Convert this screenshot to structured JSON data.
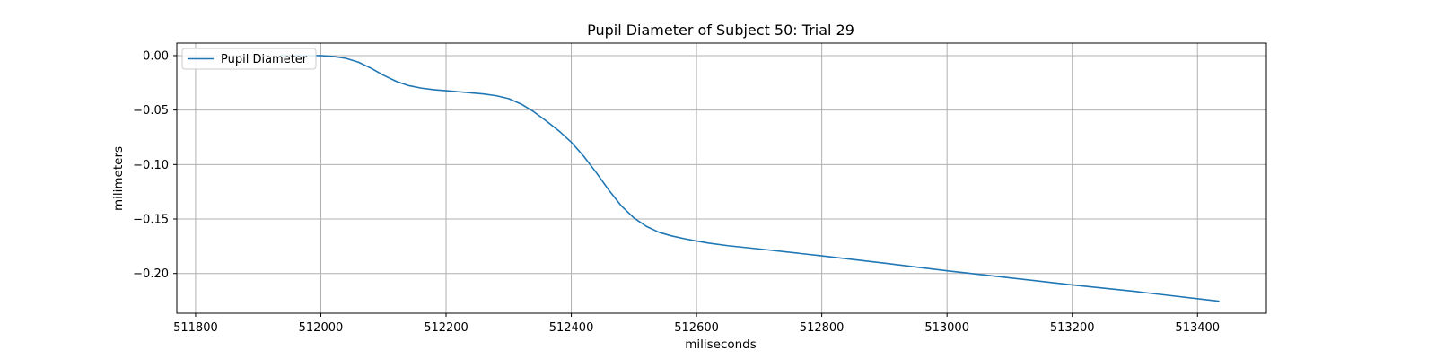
{
  "chart_data": {
    "type": "line",
    "title": "Pupil Diameter of Subject 50: Trial 29",
    "xlabel": "miliseconds",
    "ylabel": "milimeters",
    "xlim": [
      511770,
      513510
    ],
    "ylim": [
      -0.2365,
      0.0115
    ],
    "xticks": [
      511800,
      512000,
      512200,
      512400,
      512600,
      512800,
      513000,
      513200,
      513400
    ],
    "xtick_labels": [
      "511800",
      "512000",
      "512200",
      "512400",
      "512600",
      "512800",
      "513000",
      "513200",
      "513400"
    ],
    "yticks": [
      0.0,
      -0.05,
      -0.1,
      -0.15,
      -0.2
    ],
    "ytick_labels": [
      "0.00",
      "−0.05",
      "−0.10",
      "−0.15",
      "−0.20"
    ],
    "grid": true,
    "legend": {
      "position": "upper-left"
    },
    "colors": {
      "series": "#1f77b4",
      "grid": "#b0b0b0"
    },
    "series": [
      {
        "name": "Pupil Diameter",
        "x": [
          511935,
          511960,
          511985,
          512000,
          512020,
          512040,
          512060,
          512080,
          512100,
          512120,
          512140,
          512160,
          512180,
          512200,
          512220,
          512240,
          512260,
          512280,
          512300,
          512320,
          512340,
          512360,
          512380,
          512400,
          512420,
          512440,
          512460,
          512480,
          512500,
          512520,
          512540,
          512560,
          512580,
          512600,
          512620,
          512650,
          512700,
          512800,
          512900,
          513000,
          513100,
          513200,
          513300,
          513435
        ],
        "y": [
          0.0,
          0.0,
          0.0,
          0.0,
          -0.0008,
          -0.0025,
          -0.006,
          -0.0115,
          -0.018,
          -0.0235,
          -0.0275,
          -0.0298,
          -0.0313,
          -0.0322,
          -0.0332,
          -0.0342,
          -0.0352,
          -0.0368,
          -0.0395,
          -0.0445,
          -0.0515,
          -0.06,
          -0.069,
          -0.0795,
          -0.0925,
          -0.1075,
          -0.1235,
          -0.138,
          -0.149,
          -0.1568,
          -0.1622,
          -0.1655,
          -0.168,
          -0.1702,
          -0.1722,
          -0.1745,
          -0.1775,
          -0.1838,
          -0.1905,
          -0.1975,
          -0.204,
          -0.2105,
          -0.2165,
          -0.2255
        ]
      }
    ]
  }
}
